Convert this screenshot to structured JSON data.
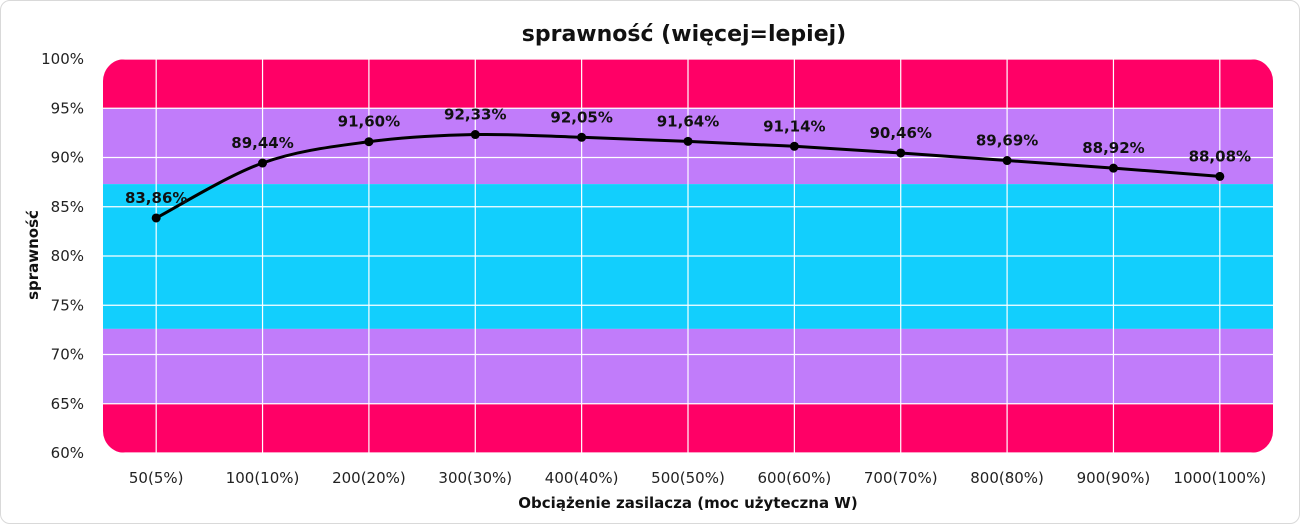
{
  "chart_data": {
    "type": "line",
    "title": "sprawność (więcej=lepiej)",
    "xlabel": "Obciążenie zasilacza (moc użyteczna W)",
    "ylabel": "sprawność",
    "categories": [
      "50(5%)",
      "100(10%)",
      "200(20%)",
      "300(30%)",
      "400(40%)",
      "500(50%)",
      "600(60%)",
      "700(70%)",
      "800(80%)",
      "900(90%)",
      "1000(100%)"
    ],
    "values": [
      83.86,
      89.44,
      91.6,
      92.33,
      92.05,
      91.64,
      91.14,
      90.46,
      89.69,
      88.92,
      88.08
    ],
    "data_labels": [
      "83,86%",
      "89,44%",
      "91,60%",
      "92,33%",
      "92,05%",
      "91,64%",
      "91,14%",
      "90,46%",
      "89,69%",
      "88,92%",
      "88,08%"
    ],
    "ylim": [
      60,
      100
    ],
    "y_ticks": [
      60,
      65,
      70,
      75,
      80,
      85,
      90,
      95,
      100
    ],
    "y_tick_labels": [
      "60%",
      "65%",
      "70%",
      "75%",
      "80%",
      "85%",
      "90%",
      "95%",
      "100%"
    ],
    "grid": true,
    "background_bands": [
      {
        "from": 95,
        "to": 100,
        "color": "#ff0066"
      },
      {
        "from": 87.3,
        "to": 95,
        "color": "#c17cfa"
      },
      {
        "from": 72.6,
        "to": 87.3,
        "color": "#12cffd"
      },
      {
        "from": 65,
        "to": 72.6,
        "color": "#c17cfa"
      },
      {
        "from": 60,
        "to": 65,
        "color": "#ff0066"
      }
    ],
    "line_color": "#000000"
  }
}
